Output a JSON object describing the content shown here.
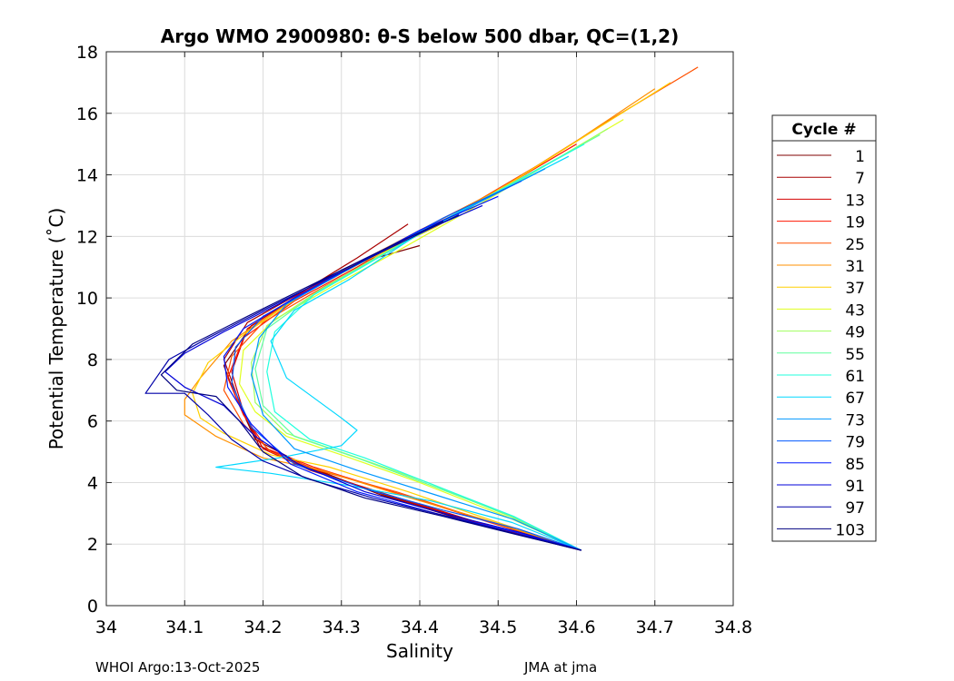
{
  "chart_data": {
    "type": "line",
    "title": "Argo WMO 2900980: θ-S below 500 dbar,  QC=(1,2)",
    "xlabel": "Salinity",
    "ylabel": "Potential Temperature (˚C)",
    "xlim": [
      34.0,
      34.8
    ],
    "ylim": [
      0,
      18
    ],
    "xticks": [
      "34",
      "34.1",
      "34.2",
      "34.3",
      "34.4",
      "34.5",
      "34.6",
      "34.7",
      "34.8"
    ],
    "yticks": [
      "0",
      "2",
      "4",
      "6",
      "8",
      "10",
      "12",
      "14",
      "16",
      "18"
    ],
    "grid": true,
    "legend": {
      "title": "Cycle #",
      "placement": "right",
      "entries": [
        {
          "label": "1",
          "color": "#800000"
        },
        {
          "label": "7",
          "color": "#a80000"
        },
        {
          "label": "13",
          "color": "#d40000"
        },
        {
          "label": "19",
          "color": "#ff1400"
        },
        {
          "label": "25",
          "color": "#ff5000"
        },
        {
          "label": "31",
          "color": "#ff9000"
        },
        {
          "label": "37",
          "color": "#ffd000"
        },
        {
          "label": "43",
          "color": "#e0ff1e"
        },
        {
          "label": "49",
          "color": "#a0ff5e"
        },
        {
          "label": "55",
          "color": "#60ff9e"
        },
        {
          "label": "61",
          "color": "#20ffde"
        },
        {
          "label": "67",
          "color": "#00d8ff"
        },
        {
          "label": "73",
          "color": "#0098ff"
        },
        {
          "label": "79",
          "color": "#0058ff"
        },
        {
          "label": "85",
          "color": "#0018ff"
        },
        {
          "label": "91",
          "color": "#0000d8"
        },
        {
          "label": "97",
          "color": "#0000a8"
        },
        {
          "label": "103",
          "color": "#000080"
        }
      ]
    },
    "series": [
      {
        "name": "1",
        "color": "#800000",
        "x": [
          34.4,
          34.33,
          34.26,
          34.185,
          34.15,
          34.165,
          34.19,
          34.25,
          34.35,
          34.48,
          34.606
        ],
        "y": [
          11.7,
          11.2,
          10.3,
          9.1,
          7.8,
          6.8,
          5.4,
          4.6,
          3.6,
          2.6,
          1.8
        ]
      },
      {
        "name": "7",
        "color": "#a80000",
        "x": [
          34.385,
          34.32,
          34.25,
          34.18,
          34.15,
          34.17,
          34.195,
          34.255,
          34.355,
          34.485,
          34.606
        ],
        "y": [
          12.4,
          11.3,
          10.2,
          9.2,
          8.0,
          6.6,
          5.2,
          4.5,
          3.6,
          2.6,
          1.8
        ]
      },
      {
        "name": "13",
        "color": "#d40000",
        "x": [
          34.5,
          34.4,
          34.32,
          34.245,
          34.18,
          34.16,
          34.175,
          34.2,
          34.26,
          34.36,
          34.488,
          34.606
        ],
        "y": [
          13.5,
          12.2,
          11.1,
          10.1,
          9.0,
          7.6,
          6.3,
          5.1,
          4.4,
          3.6,
          2.6,
          1.8
        ]
      },
      {
        "name": "19",
        "color": "#ff1400",
        "x": [
          34.6,
          34.5,
          34.4,
          34.32,
          34.24,
          34.175,
          34.155,
          34.175,
          34.205,
          34.265,
          34.365,
          34.49,
          34.606
        ],
        "y": [
          15.0,
          13.5,
          12.2,
          11.0,
          9.9,
          8.7,
          7.4,
          6.2,
          5.1,
          4.5,
          3.7,
          2.7,
          1.8
        ]
      },
      {
        "name": "25",
        "color": "#ff5000",
        "x": [
          34.755,
          34.65,
          34.55,
          34.45,
          34.36,
          34.28,
          34.2,
          34.16,
          34.15,
          34.175,
          34.21,
          34.27,
          34.37,
          34.492,
          34.606
        ],
        "y": [
          17.5,
          15.9,
          14.3,
          12.8,
          11.5,
          10.4,
          9.2,
          8.1,
          7.0,
          5.9,
          5.0,
          4.4,
          3.7,
          2.7,
          1.8
        ]
      },
      {
        "name": "31",
        "color": "#ff9000",
        "x": [
          34.7,
          34.6,
          34.5,
          34.4,
          34.31,
          34.23,
          34.16,
          34.12,
          34.1,
          34.1,
          34.14,
          34.2,
          34.275,
          34.375,
          34.495,
          34.606
        ],
        "y": [
          16.8,
          15.1,
          13.5,
          12.2,
          11.0,
          9.8,
          8.6,
          7.4,
          6.7,
          6.2,
          5.5,
          4.8,
          4.4,
          3.6,
          2.7,
          1.8
        ]
      },
      {
        "name": "37",
        "color": "#ffd000",
        "x": [
          34.72,
          34.62,
          34.52,
          34.42,
          34.33,
          34.25,
          34.18,
          34.13,
          34.11,
          34.12,
          34.15,
          34.21,
          34.285,
          34.385,
          34.5,
          34.606
        ],
        "y": [
          17.0,
          15.4,
          13.8,
          12.3,
          11.2,
          10.1,
          8.9,
          7.9,
          6.9,
          6.1,
          5.6,
          4.9,
          4.5,
          3.7,
          2.7,
          1.8
        ]
      },
      {
        "name": "43",
        "color": "#e0ff1e",
        "x": [
          34.66,
          34.56,
          34.46,
          34.37,
          34.29,
          34.215,
          34.175,
          34.17,
          34.19,
          34.23,
          34.3,
          34.4,
          34.51,
          34.606
        ],
        "y": [
          15.8,
          14.3,
          12.8,
          11.5,
          10.4,
          9.3,
          8.3,
          7.2,
          6.3,
          5.5,
          4.9,
          4.0,
          2.9,
          1.8
        ]
      },
      {
        "name": "49",
        "color": "#a0ff5e",
        "x": [
          34.64,
          34.54,
          34.44,
          34.35,
          34.275,
          34.205,
          34.185,
          34.19,
          34.23,
          34.31,
          34.41,
          34.515,
          34.606
        ],
        "y": [
          15.5,
          14.0,
          12.6,
          11.4,
          10.3,
          9.1,
          7.9,
          6.6,
          5.6,
          4.9,
          4.0,
          2.9,
          1.8
        ]
      },
      {
        "name": "55",
        "color": "#60ff9e",
        "x": [
          34.63,
          34.53,
          34.43,
          34.345,
          34.27,
          34.205,
          34.19,
          34.2,
          34.24,
          34.32,
          34.415,
          34.518,
          34.606
        ],
        "y": [
          15.3,
          13.9,
          12.5,
          11.3,
          10.2,
          9.0,
          7.7,
          6.5,
          5.5,
          4.8,
          3.9,
          2.9,
          1.8
        ]
      },
      {
        "name": "61",
        "color": "#20ffde",
        "x": [
          34.61,
          34.51,
          34.42,
          34.34,
          34.265,
          34.215,
          34.205,
          34.215,
          34.26,
          34.33,
          34.42,
          34.52,
          34.606
        ],
        "y": [
          15.0,
          13.6,
          12.4,
          11.2,
          10.1,
          8.9,
          7.6,
          6.3,
          5.4,
          4.8,
          3.9,
          2.9,
          1.8
        ]
      },
      {
        "name": "67",
        "color": "#00d8ff",
        "x": [
          34.59,
          34.49,
          34.4,
          34.31,
          34.24,
          34.21,
          34.23,
          34.3,
          34.32,
          34.3,
          34.22,
          34.14,
          34.21,
          34.31,
          34.415,
          34.518,
          34.606
        ],
        "y": [
          14.6,
          13.3,
          12.1,
          10.6,
          9.6,
          8.6,
          7.4,
          6.1,
          5.7,
          5.2,
          4.8,
          4.5,
          4.3,
          3.9,
          3.4,
          2.7,
          1.8
        ]
      },
      {
        "name": "73",
        "color": "#0098ff",
        "x": [
          34.56,
          34.46,
          34.38,
          34.3,
          34.23,
          34.195,
          34.185,
          34.2,
          34.24,
          34.32,
          34.42,
          34.52,
          34.606
        ],
        "y": [
          14.2,
          12.9,
          11.9,
          10.8,
          9.8,
          8.7,
          7.5,
          6.2,
          5.1,
          4.4,
          3.6,
          2.8,
          1.8
        ]
      },
      {
        "name": "79",
        "color": "#0058ff",
        "x": [
          34.53,
          34.43,
          34.35,
          34.27,
          34.2,
          34.165,
          34.16,
          34.185,
          34.24,
          34.33,
          34.43,
          34.525,
          34.606
        ],
        "y": [
          13.8,
          12.6,
          11.5,
          10.4,
          9.4,
          8.4,
          7.2,
          5.8,
          4.6,
          3.8,
          3.1,
          2.5,
          1.8
        ]
      },
      {
        "name": "85",
        "color": "#0018ff",
        "x": [
          34.5,
          34.4,
          34.32,
          34.24,
          34.175,
          34.15,
          34.155,
          34.185,
          34.235,
          34.32,
          34.42,
          34.52,
          34.606
        ],
        "y": [
          13.3,
          12.2,
          11.1,
          10.0,
          9.0,
          8.1,
          7.1,
          5.9,
          4.6,
          3.7,
          3.0,
          2.4,
          1.8
        ]
      },
      {
        "name": "91",
        "color": "#0000d8",
        "x": [
          34.48,
          34.38,
          34.3,
          34.22,
          34.15,
          34.1,
          34.075,
          34.1,
          34.15,
          34.19,
          34.245,
          34.33,
          34.43,
          34.525,
          34.606
        ],
        "y": [
          13.0,
          11.9,
          10.9,
          9.8,
          8.9,
          8.2,
          7.6,
          7.1,
          6.5,
          5.5,
          4.6,
          3.7,
          3.0,
          2.4,
          1.8
        ]
      },
      {
        "name": "97",
        "color": "#0000a8",
        "x": [
          34.45,
          34.36,
          34.28,
          34.2,
          34.13,
          34.08,
          34.05,
          34.1,
          34.13,
          34.16,
          34.2,
          34.26,
          34.34,
          34.435,
          34.528,
          34.606
        ],
        "y": [
          12.7,
          11.6,
          10.6,
          9.6,
          8.7,
          8.0,
          6.9,
          6.9,
          6.2,
          5.4,
          4.7,
          4.1,
          3.5,
          2.9,
          2.3,
          1.8
        ]
      },
      {
        "name": "103",
        "color": "#000080",
        "x": [
          34.43,
          34.34,
          34.26,
          34.18,
          34.11,
          34.07,
          34.09,
          34.14,
          34.17,
          34.2,
          34.25,
          34.33,
          34.43,
          34.525,
          34.606
        ],
        "y": [
          12.5,
          11.4,
          10.4,
          9.4,
          8.5,
          7.5,
          7.0,
          6.8,
          6.0,
          5.0,
          4.2,
          3.5,
          2.9,
          2.3,
          1.8
        ]
      }
    ]
  },
  "footer": {
    "left": "WHOI Argo:13-Oct-2025",
    "right": "JMA at jma"
  }
}
